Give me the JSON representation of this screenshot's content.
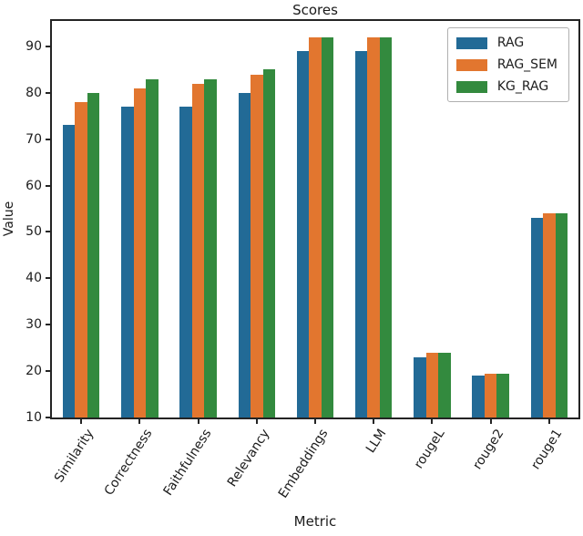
{
  "figure": {
    "title": "Scores",
    "xlabel": "Metric",
    "ylabel": "Value"
  },
  "chart_data": {
    "type": "bar",
    "title": "Scores",
    "xlabel": "Metric",
    "ylabel": "Value",
    "categories": [
      "Similarity",
      "Correctness",
      "Faithfulness",
      "Relevancy",
      "Embeddings",
      "LLM",
      "rougeL",
      "rouge2",
      "rouge1"
    ],
    "series": [
      {
        "name": "RAG",
        "color": "#226a96",
        "values": [
          73,
          77,
          77,
          80,
          89,
          89,
          23,
          19,
          53
        ]
      },
      {
        "name": "RAG_SEM",
        "color": "#e2762f",
        "values": [
          78,
          81,
          82,
          84,
          92,
          92,
          24,
          19.5,
          54
        ]
      },
      {
        "name": "KG_RAG",
        "color": "#338a3e",
        "values": [
          80,
          83,
          83,
          85,
          92,
          92,
          24,
          19.5,
          54
        ]
      }
    ],
    "ylim": [
      10,
      95.5
    ],
    "yticks": [
      10,
      20,
      30,
      40,
      50,
      60,
      70,
      80,
      90
    ],
    "grid": false,
    "legend_position": "upper right",
    "bar_baseline": 10,
    "frame_color": "#242424",
    "background_color": "#ffffff"
  }
}
